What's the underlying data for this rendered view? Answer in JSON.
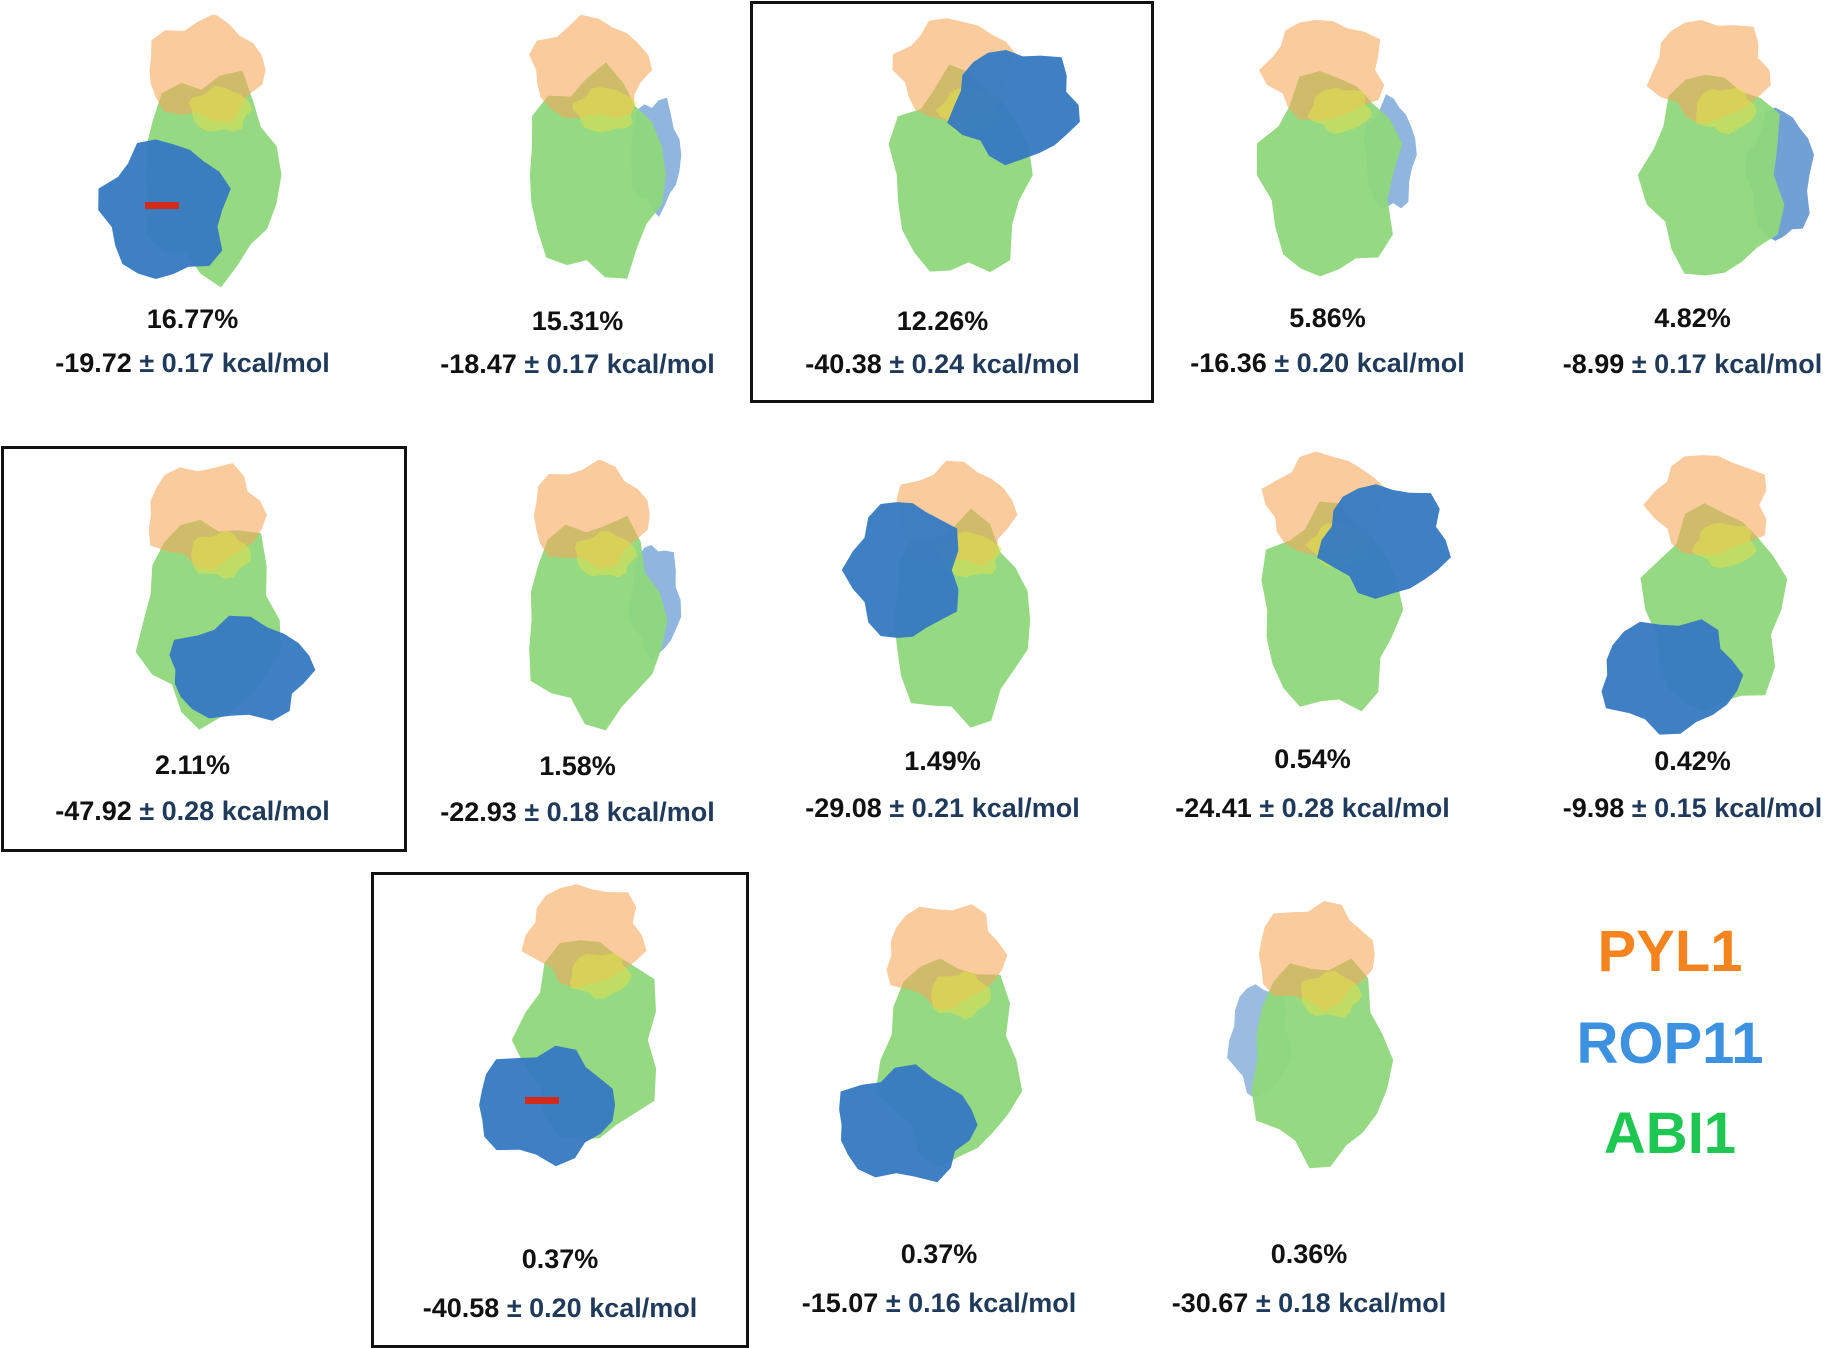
{
  "colors": {
    "pyl1": "#f7a95b",
    "rop11": "#3579c2",
    "abi1": "#8fd87c",
    "interface": "#e1e04a",
    "ligand": "#d42a1a"
  },
  "legend": [
    {
      "label": "PYL1",
      "color": "#f5841f"
    },
    {
      "label": "ROP11",
      "color": "#3c92e0"
    },
    {
      "label": "ABI1",
      "color": "#1ec752"
    }
  ],
  "complexes": [
    {
      "population": "16.77%",
      "energy_value": "-19.72",
      "energy_error": "± 0.17",
      "energy_unit": "kcal/mol",
      "highlighted": false,
      "rop11_side": "left-front",
      "has_ligand": true
    },
    {
      "population": "15.31%",
      "energy_value": "-18.47",
      "energy_error": "± 0.17",
      "energy_unit": "kcal/mol",
      "highlighted": false,
      "rop11_side": "right-back",
      "has_ligand": false
    },
    {
      "population": "12.26%",
      "energy_value": "-40.38",
      "energy_error": "± 0.24",
      "energy_unit": "kcal/mol",
      "highlighted": true,
      "rop11_side": "top-right",
      "has_ligand": false
    },
    {
      "population": "5.86%",
      "energy_value": "-16.36",
      "energy_error": "± 0.20",
      "energy_unit": "kcal/mol",
      "highlighted": false,
      "rop11_side": "right-back",
      "has_ligand": false
    },
    {
      "population": "4.82%",
      "energy_value": "-8.99",
      "energy_error": "± 0.17",
      "energy_unit": "kcal/mol",
      "highlighted": false,
      "rop11_side": "right",
      "has_ligand": false
    },
    {
      "population": "2.11%",
      "energy_value": "-47.92",
      "energy_error": "± 0.28",
      "energy_unit": "kcal/mol",
      "highlighted": true,
      "rop11_side": "bottom-right",
      "has_ligand": false
    },
    {
      "population": "1.58%",
      "energy_value": "-22.93",
      "energy_error": "± 0.18",
      "energy_unit": "kcal/mol",
      "highlighted": false,
      "rop11_side": "right-back",
      "has_ligand": false
    },
    {
      "population": "1.49%",
      "energy_value": "-29.08",
      "energy_error": "± 0.21",
      "energy_unit": "kcal/mol",
      "highlighted": false,
      "rop11_side": "left",
      "has_ligand": false
    },
    {
      "population": "0.54%",
      "energy_value": "-24.41",
      "energy_error": "± 0.28",
      "energy_unit": "kcal/mol",
      "highlighted": false,
      "rop11_side": "top-right",
      "has_ligand": false
    },
    {
      "population": "0.42%",
      "energy_value": "-9.98",
      "energy_error": "± 0.15",
      "energy_unit": "kcal/mol",
      "highlighted": false,
      "rop11_side": "bottom-left",
      "has_ligand": false
    },
    {
      "population": "0.37%",
      "energy_value": "-40.58",
      "energy_error": "± 0.20",
      "energy_unit": "kcal/mol",
      "highlighted": true,
      "rop11_side": "bottom-left",
      "has_ligand": true
    },
    {
      "population": "0.37%",
      "energy_value": "-15.07",
      "energy_error": "± 0.16",
      "energy_unit": "kcal/mol",
      "highlighted": false,
      "rop11_side": "bottom-left",
      "has_ligand": false
    },
    {
      "population": "0.36%",
      "energy_value": "-30.67",
      "energy_error": "± 0.18",
      "energy_unit": "kcal/mol",
      "highlighted": false,
      "rop11_side": "left-back",
      "has_ligand": false
    }
  ]
}
